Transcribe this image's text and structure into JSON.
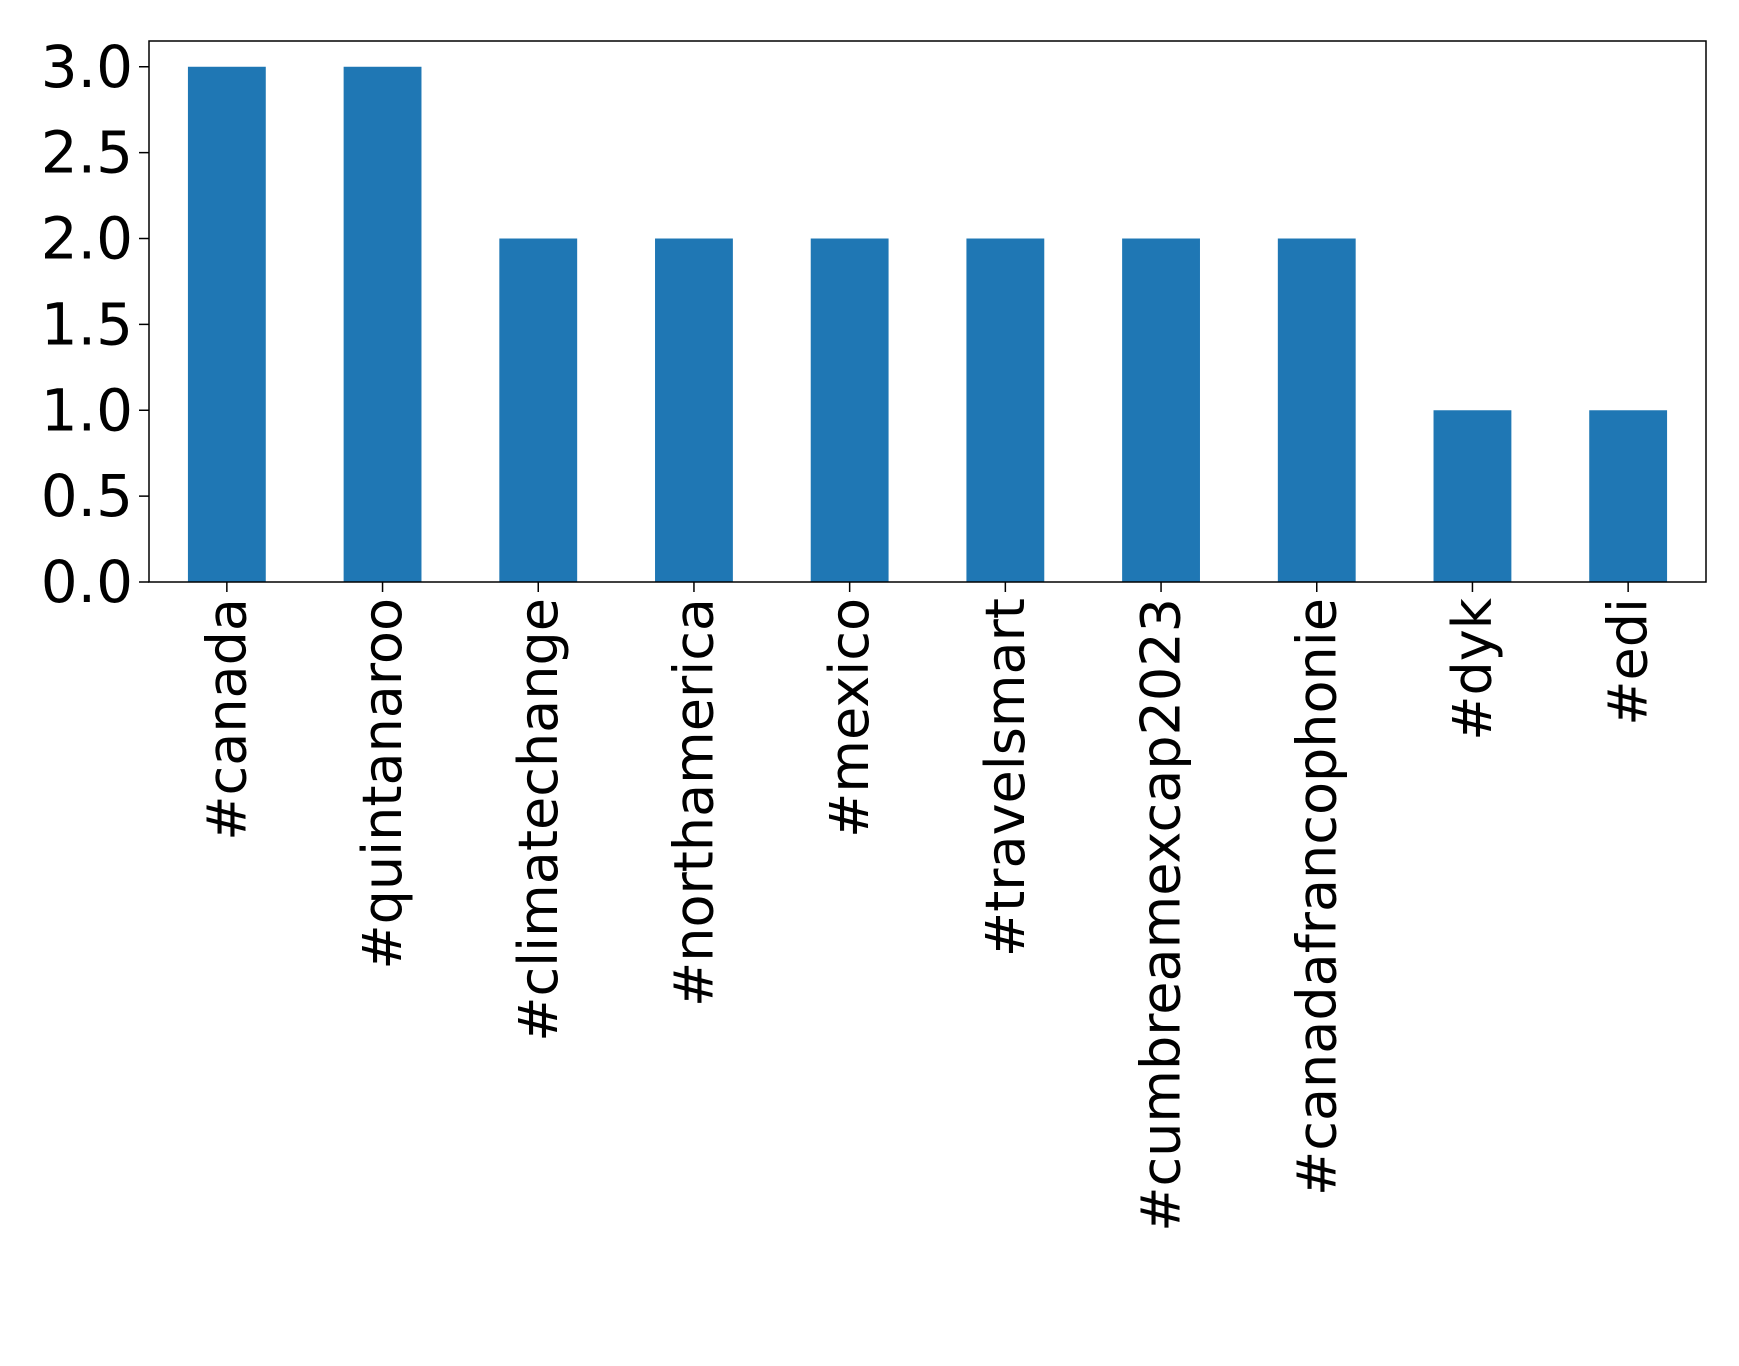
{
  "chart_data": {
    "type": "bar",
    "title": "",
    "xlabel": "",
    "ylabel": "",
    "categories": [
      "#canada",
      "#quintanaroo",
      "#climatechange",
      "#northamerica",
      "#mexico",
      "#travelsmart",
      "#cumbreamexcap2023",
      "#canadafrancophonie",
      "#dyk",
      "#edi"
    ],
    "values": [
      3,
      3,
      2,
      2,
      2,
      2,
      2,
      2,
      1,
      1
    ],
    "ylim": [
      0,
      3.15
    ],
    "yticks": [
      0.0,
      0.5,
      1.0,
      1.5,
      2.0,
      2.5,
      3.0
    ],
    "ytick_labels": [
      "0.0",
      "0.5",
      "1.0",
      "1.5",
      "2.0",
      "2.5",
      "3.0"
    ],
    "bar_color": "#1f77b4",
    "grid": false,
    "legend": "none"
  }
}
